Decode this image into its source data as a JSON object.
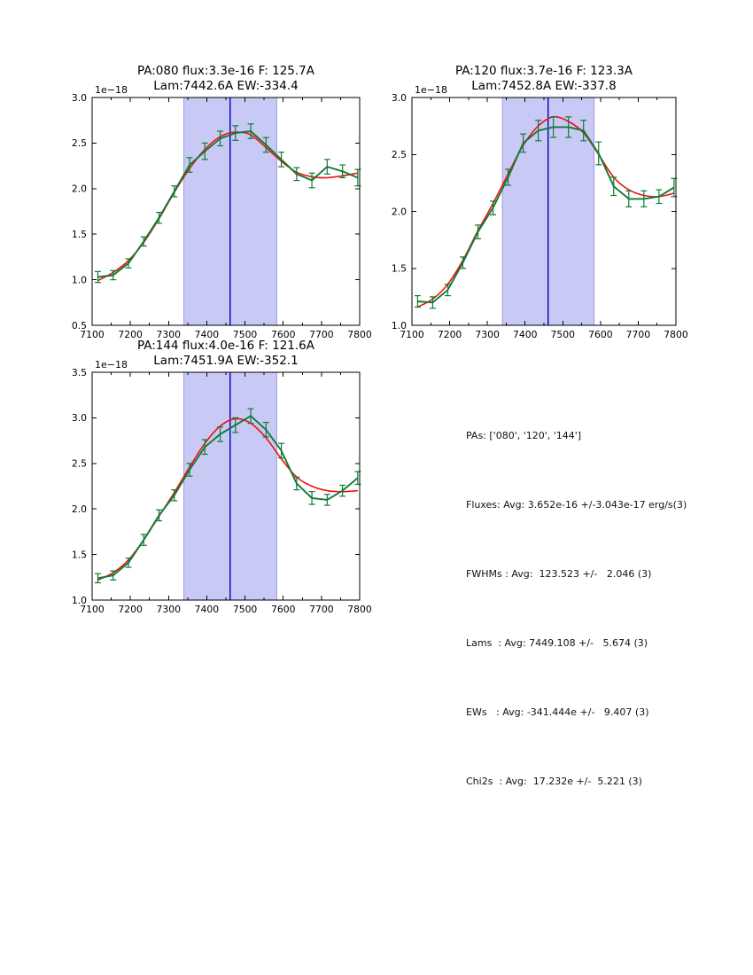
{
  "colors": {
    "background": "#ffffff",
    "band": "#c9c9f6",
    "band_edge": "#9a9ae0",
    "vline": "#0000bb",
    "data_series": "#107a36",
    "model_series": "#f01010",
    "axis": "#000000"
  },
  "summary": {
    "lines": [
      "PAs: ['080', '120', '144']",
      "Fluxes: Avg: 3.652e-16 +/-3.043e-17 erg/s(3)",
      "FWHMs : Avg:  123.523 +/-   2.046 (3)",
      "Lams  : Avg: 7449.108 +/-   5.674 (3)",
      "EWs   : Avg: -341.444e +/-   9.407 (3)",
      "Chi2s  : Avg:  17.232e +/-  5.221 (3)"
    ]
  },
  "chart_data": [
    {
      "type": "line",
      "title1": "PA:080 flux:3.3e-16 F: 125.7A",
      "title2": "Lam:7442.6A EW:-334.4",
      "offset_label": "1e−18",
      "xlim": [
        7100,
        7800
      ],
      "ylim": [
        0.5,
        3.0
      ],
      "xticks": [
        7100,
        7200,
        7300,
        7400,
        7500,
        7600,
        7700,
        7800
      ],
      "x_minor_step": 50,
      "yticks": [
        0.5,
        1.0,
        1.5,
        2.0,
        2.5,
        3.0
      ],
      "band": [
        7340,
        7583
      ],
      "vline": 7461,
      "x": [
        7115,
        7155,
        7195,
        7235,
        7275,
        7315,
        7355,
        7395,
        7435,
        7475,
        7515,
        7555,
        7595,
        7635,
        7675,
        7715,
        7755,
        7795
      ],
      "series": [
        {
          "name": "spectrum-data",
          "color": "#107a36",
          "values": [
            1.03,
            1.05,
            1.18,
            1.42,
            1.68,
            1.97,
            2.26,
            2.41,
            2.55,
            2.61,
            2.63,
            2.48,
            2.32,
            2.16,
            2.09,
            2.24,
            2.19,
            2.12
          ],
          "errors": [
            0.06,
            0.05,
            0.05,
            0.05,
            0.06,
            0.06,
            0.08,
            0.09,
            0.08,
            0.08,
            0.08,
            0.08,
            0.08,
            0.07,
            0.08,
            0.08,
            0.07,
            0.09
          ]
        },
        {
          "name": "gaussian-fit",
          "color": "#f01010",
          "values": [
            0.99,
            1.08,
            1.21,
            1.41,
            1.67,
            1.96,
            2.22,
            2.43,
            2.57,
            2.62,
            2.59,
            2.45,
            2.3,
            2.18,
            2.13,
            2.12,
            2.14,
            2.17
          ]
        }
      ]
    },
    {
      "type": "line",
      "title1": "PA:120 flux:3.7e-16 F: 123.3A",
      "title2": "Lam:7452.8A EW:-337.8",
      "offset_label": "1e−18",
      "xlim": [
        7100,
        7800
      ],
      "ylim": [
        1.0,
        3.0
      ],
      "xticks": [
        7100,
        7200,
        7300,
        7400,
        7500,
        7600,
        7700,
        7800
      ],
      "x_minor_step": 50,
      "yticks": [
        1.0,
        1.5,
        2.0,
        2.5,
        3.0
      ],
      "band": [
        7340,
        7583
      ],
      "vline": 7461,
      "x": [
        7115,
        7155,
        7195,
        7235,
        7275,
        7315,
        7355,
        7395,
        7435,
        7475,
        7515,
        7555,
        7595,
        7635,
        7675,
        7715,
        7755,
        7795
      ],
      "series": [
        {
          "name": "spectrum-data",
          "color": "#107a36",
          "values": [
            1.21,
            1.2,
            1.31,
            1.55,
            1.82,
            2.03,
            2.3,
            2.6,
            2.71,
            2.74,
            2.74,
            2.71,
            2.51,
            2.22,
            2.11,
            2.11,
            2.13,
            2.21
          ],
          "errors": [
            0.05,
            0.05,
            0.05,
            0.05,
            0.06,
            0.06,
            0.07,
            0.08,
            0.09,
            0.09,
            0.09,
            0.09,
            0.1,
            0.08,
            0.07,
            0.07,
            0.06,
            0.08
          ]
        },
        {
          "name": "gaussian-fit",
          "color": "#f01010",
          "values": [
            1.16,
            1.23,
            1.36,
            1.57,
            1.83,
            2.07,
            2.33,
            2.58,
            2.75,
            2.83,
            2.79,
            2.69,
            2.5,
            2.3,
            2.19,
            2.14,
            2.13,
            2.16
          ]
        }
      ]
    },
    {
      "type": "line",
      "title1": "PA:144 flux:4.0e-16 F: 121.6A",
      "title2": "Lam:7451.9A EW:-352.1",
      "offset_label": "1e−18",
      "xlim": [
        7100,
        7800
      ],
      "ylim": [
        1.0,
        3.5
      ],
      "xticks": [
        7100,
        7200,
        7300,
        7400,
        7500,
        7600,
        7700,
        7800
      ],
      "x_minor_step": 50,
      "yticks": [
        1.0,
        1.5,
        2.0,
        2.5,
        3.0,
        3.5
      ],
      "band": [
        7340,
        7583
      ],
      "vline": 7461,
      "x": [
        7115,
        7155,
        7195,
        7235,
        7275,
        7315,
        7355,
        7395,
        7435,
        7475,
        7515,
        7555,
        7595,
        7635,
        7675,
        7715,
        7755,
        7795
      ],
      "series": [
        {
          "name": "spectrum-data",
          "color": "#107a36",
          "values": [
            1.24,
            1.27,
            1.41,
            1.66,
            1.93,
            2.15,
            2.43,
            2.68,
            2.82,
            2.92,
            3.02,
            2.87,
            2.64,
            2.28,
            2.12,
            2.1,
            2.2,
            2.34
          ],
          "errors": [
            0.05,
            0.05,
            0.05,
            0.06,
            0.06,
            0.06,
            0.07,
            0.08,
            0.08,
            0.08,
            0.08,
            0.08,
            0.08,
            0.07,
            0.07,
            0.06,
            0.06,
            0.07
          ]
        },
        {
          "name": "gaussian-fit",
          "color": "#f01010",
          "values": [
            1.22,
            1.3,
            1.44,
            1.66,
            1.92,
            2.18,
            2.46,
            2.72,
            2.91,
            2.99,
            2.94,
            2.78,
            2.55,
            2.35,
            2.25,
            2.2,
            2.19,
            2.2
          ]
        }
      ]
    }
  ]
}
